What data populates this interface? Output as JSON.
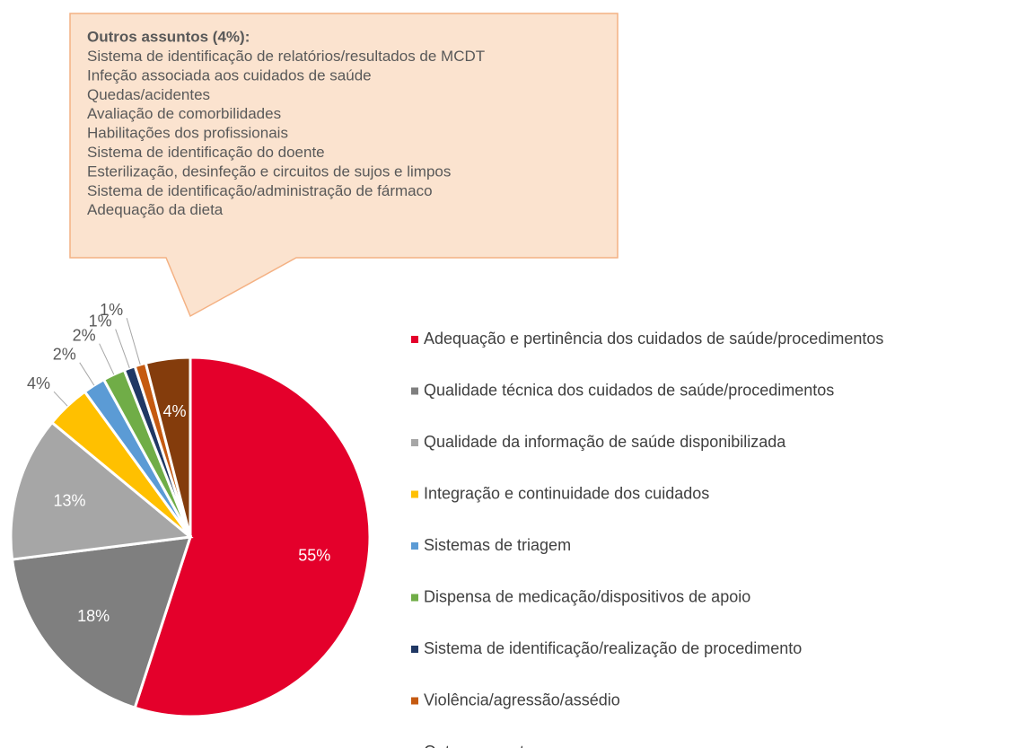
{
  "chart_data": {
    "type": "pie",
    "categories": [
      "Adequação e pertinência dos cuidados de saúde/procedimentos",
      "Qualidade técnica dos cuidados de saúde/procedimentos",
      "Qualidade da informação de saúde disponibilizada",
      "Integração e continuidade dos cuidados",
      "Sistemas de triagem",
      "Dispensa de medicação/dispositivos de apoio",
      "Sistema de identificação/realização de procedimento",
      "Violência/agressão/assédio",
      "Outros assuntos"
    ],
    "values": [
      55,
      18,
      13,
      4,
      2,
      2,
      1,
      1,
      4
    ],
    "value_labels": [
      "55%",
      "18%",
      "13%",
      "4%",
      "2%",
      "2%",
      "1%",
      "1%",
      "4%"
    ],
    "colors": [
      "#e4002b",
      "#7f7f7f",
      "#a6a6a6",
      "#ffc000",
      "#5b9bd5",
      "#70ad47",
      "#203864",
      "#c55a11",
      "#843c0c"
    ],
    "label_positions": [
      "inside",
      "inside",
      "inside",
      "outside",
      "outside",
      "outside",
      "outside",
      "outside",
      "inside"
    ],
    "legend": "right",
    "annotation": {
      "title": "Outros assuntos (4%):",
      "items": [
        "Sistema de identificação de relatórios/resultados de MCDT",
        "Infeção associada aos cuidados de saúde",
        "Quedas/acidentes",
        "Avaliação de comorbilidades",
        "Habilitações dos profissionais",
        "Sistema de identificação do doente",
        "Esterilização, desinfeção e circuitos de sujos e limpos",
        "Sistema de identificação/administração de fármaco",
        "Adequação da dieta"
      ]
    }
  }
}
